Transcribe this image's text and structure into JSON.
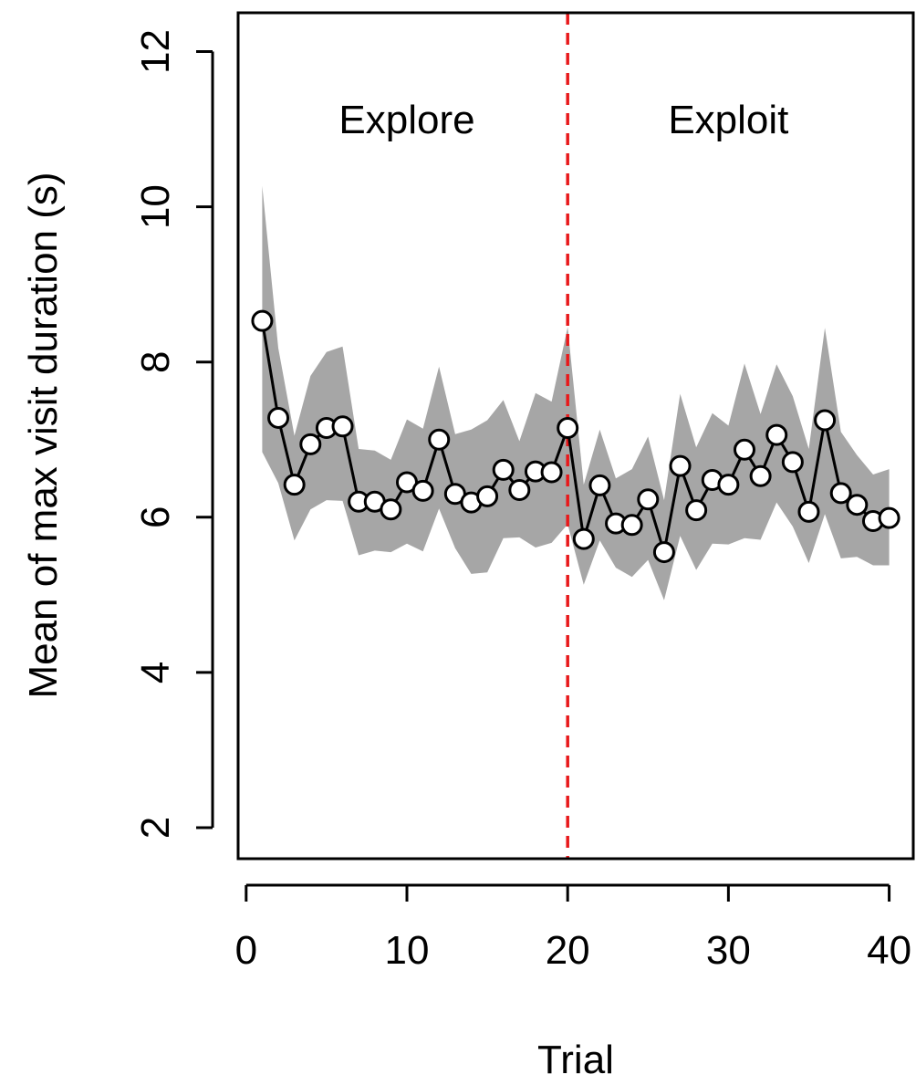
{
  "chart_data": {
    "type": "line",
    "xlabel": "Trial",
    "ylabel": "Mean of max visit duration (s)",
    "xlim": [
      -0.5,
      41.5
    ],
    "ylim": [
      1.6,
      12.5
    ],
    "x_ticks": [
      0,
      10,
      20,
      30,
      40
    ],
    "y_ticks": [
      2,
      4,
      6,
      8,
      10,
      12
    ],
    "x_tick_labels": [
      "0",
      "10",
      "20",
      "30",
      "40"
    ],
    "y_tick_labels": [
      "2",
      "4",
      "6",
      "8",
      "10",
      "12"
    ],
    "annotations": [
      {
        "text": "Explore",
        "x": 10,
        "y": 10.95
      },
      {
        "text": "Exploit",
        "x": 30,
        "y": 10.95
      }
    ],
    "divider": {
      "x": 20,
      "style": "dashed",
      "color": "#e8191b"
    },
    "colors": {
      "line": "#000000",
      "band": "#a6a6a6",
      "divider": "#e8191b"
    },
    "grid": false,
    "series": [
      {
        "x": [
          1,
          2,
          3,
          4,
          5,
          6,
          7,
          8,
          9,
          10,
          11,
          12,
          13,
          14,
          15,
          16,
          17,
          18,
          19,
          20,
          21,
          22,
          23,
          24,
          25,
          26,
          27,
          28,
          29,
          30,
          31,
          32,
          33,
          34,
          35,
          36,
          37,
          38,
          39,
          40
        ],
        "values": [
          8.53,
          7.28,
          6.42,
          6.94,
          7.15,
          7.17,
          6.2,
          6.2,
          6.1,
          6.45,
          6.34,
          7.0,
          6.3,
          6.19,
          6.27,
          6.61,
          6.35,
          6.59,
          6.58,
          7.15,
          5.72,
          6.41,
          5.92,
          5.9,
          6.23,
          5.55,
          6.66,
          6.09,
          6.48,
          6.42,
          6.87,
          6.53,
          7.06,
          6.71,
          6.07,
          7.25,
          6.31,
          6.16,
          5.95,
          5.99
        ],
        "upper": [
          10.27,
          8.18,
          7.05,
          7.82,
          8.13,
          8.2,
          6.88,
          6.86,
          6.74,
          7.26,
          7.14,
          7.94,
          7.07,
          7.13,
          7.25,
          7.51,
          6.98,
          7.6,
          7.49,
          8.45,
          6.42,
          7.13,
          6.5,
          6.62,
          7.04,
          6.22,
          7.59,
          6.9,
          7.34,
          7.18,
          7.98,
          7.33,
          7.97,
          7.56,
          6.88,
          8.44,
          7.1,
          6.8,
          6.55,
          6.62
        ],
        "lower": [
          6.84,
          6.44,
          5.7,
          6.1,
          6.22,
          6.21,
          5.51,
          5.57,
          5.55,
          5.66,
          5.56,
          6.11,
          5.6,
          5.27,
          5.29,
          5.73,
          5.74,
          5.61,
          5.67,
          5.91,
          5.13,
          5.7,
          5.35,
          5.23,
          5.45,
          4.93,
          5.76,
          5.32,
          5.66,
          5.65,
          5.73,
          5.71,
          6.19,
          5.88,
          5.41,
          6.04,
          5.47,
          5.49,
          5.38,
          5.38
        ]
      }
    ]
  }
}
